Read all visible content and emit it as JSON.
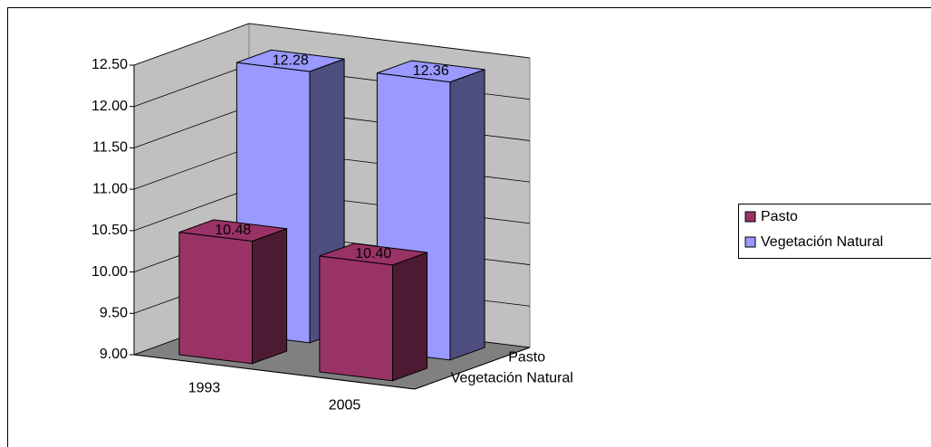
{
  "chart_data": {
    "type": "bar3d",
    "categories": [
      "1993",
      "2005"
    ],
    "series": [
      {
        "name": "Pasto",
        "color": "#993366",
        "values": [
          10.48,
          10.4
        ],
        "value_labels": [
          "10.48",
          "10.40"
        ]
      },
      {
        "name": "Vegetación Natural",
        "color": "#9999ff",
        "values": [
          12.28,
          12.36
        ],
        "value_labels": [
          "12.28",
          "12.36"
        ]
      }
    ],
    "ylim": [
      9,
      12.5
    ],
    "yticks": [
      {
        "value": 9,
        "label": "9.00"
      },
      {
        "value": 9.5,
        "label": "9.50"
      },
      {
        "value": 10,
        "label": "10.00"
      },
      {
        "value": 10.5,
        "label": "10.50"
      },
      {
        "value": 11,
        "label": "11.00"
      },
      {
        "value": 11.5,
        "label": "11.50"
      },
      {
        "value": 12,
        "label": "12.00"
      },
      {
        "value": 12.5,
        "label": "12.50"
      }
    ],
    "grid": true,
    "legend": "right"
  }
}
